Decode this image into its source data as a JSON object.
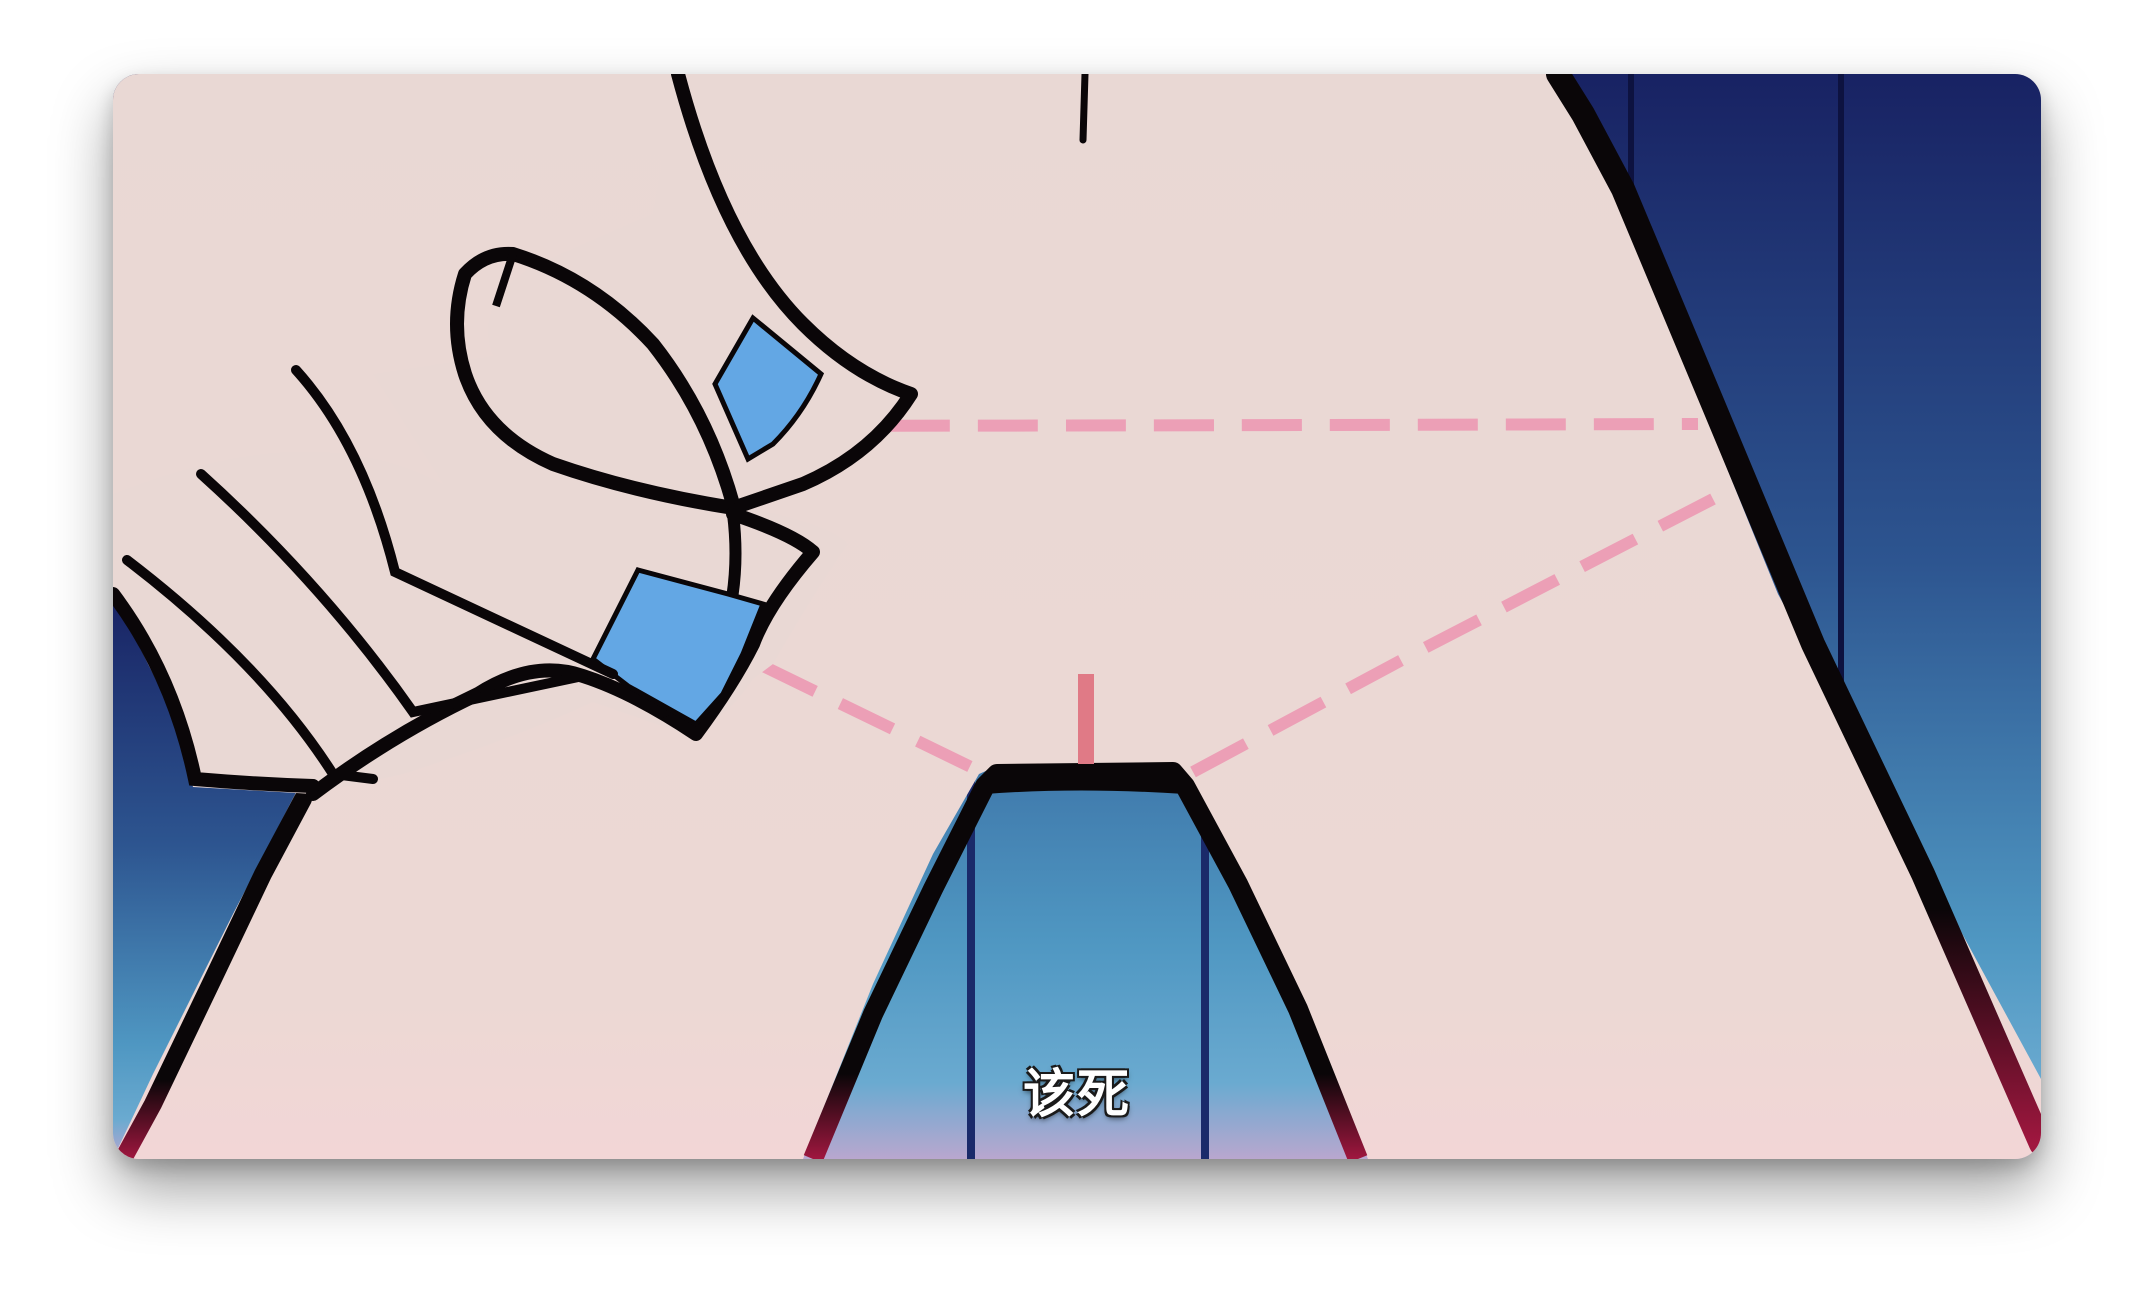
{
  "video": {
    "subtitle": "该死"
  },
  "colors": {
    "skin": "#e9d8d4",
    "outline": "#0a0608",
    "tape": "#63a7e4",
    "measure_line": "#ec9fb6",
    "sky_top": "#182263",
    "sky_bottom": "#5fa7cf"
  }
}
